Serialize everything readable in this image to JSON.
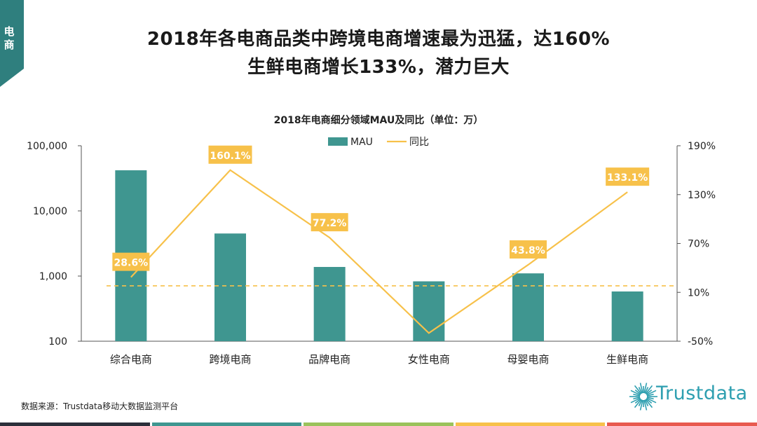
{
  "side_tag": "电\n商",
  "headline": {
    "line1": "2018年各电商品类中跨境电商增速最为迅猛，达160%",
    "line2": "生鲜电商增长133%，潜力巨大"
  },
  "source": "数据来源：Trustdata移动大数据监测平台",
  "logo_text": "Trustdata",
  "colors": {
    "teal": "#3f9690",
    "line": "#f7c14a",
    "label_bg": "#f7c14a",
    "tag": "#2f7f7e",
    "logo": "#2e9fb0",
    "bottom_bar": [
      "#2b2f3a",
      "#3f9690",
      "#9ac25b",
      "#f7c14a",
      "#e85a4f"
    ]
  },
  "chart_data": {
    "type": "bar+line",
    "title": "2018年电商细分领域MAU及同比（单位：万）",
    "categories": [
      "综合电商",
      "跨境电商",
      "品牌电商",
      "女性电商",
      "母婴电商",
      "生鲜电商"
    ],
    "series": [
      {
        "name": "MAU",
        "type": "bar",
        "axis": "left",
        "scale": "log",
        "values": [
          42000,
          4500,
          1380,
          830,
          1100,
          580
        ]
      },
      {
        "name": "同比",
        "type": "line",
        "axis": "right",
        "values": [
          28.6,
          160.1,
          77.2,
          -40,
          43.8,
          133.1
        ],
        "data_labels": [
          "28.6%",
          "160.1%",
          "77.2%",
          "",
          "43.8%",
          "133.1%"
        ]
      }
    ],
    "legend": [
      "MAU",
      "同比"
    ],
    "legend_position": "top-center",
    "left_axis": {
      "scale": "log",
      "min": 100,
      "max": 100000,
      "ticks": [
        100,
        1000,
        10000,
        100000
      ],
      "tick_labels": [
        "100",
        "1,000",
        "10,000",
        "100,000"
      ]
    },
    "right_axis": {
      "min": -50,
      "max": 190,
      "ticks": [
        -50,
        10,
        70,
        130,
        190
      ],
      "tick_labels": [
        "-50%",
        "10%",
        "70%",
        "130%",
        "190%"
      ]
    },
    "reference_line": {
      "axis": "right",
      "value": 18,
      "style": "dashed"
    }
  }
}
